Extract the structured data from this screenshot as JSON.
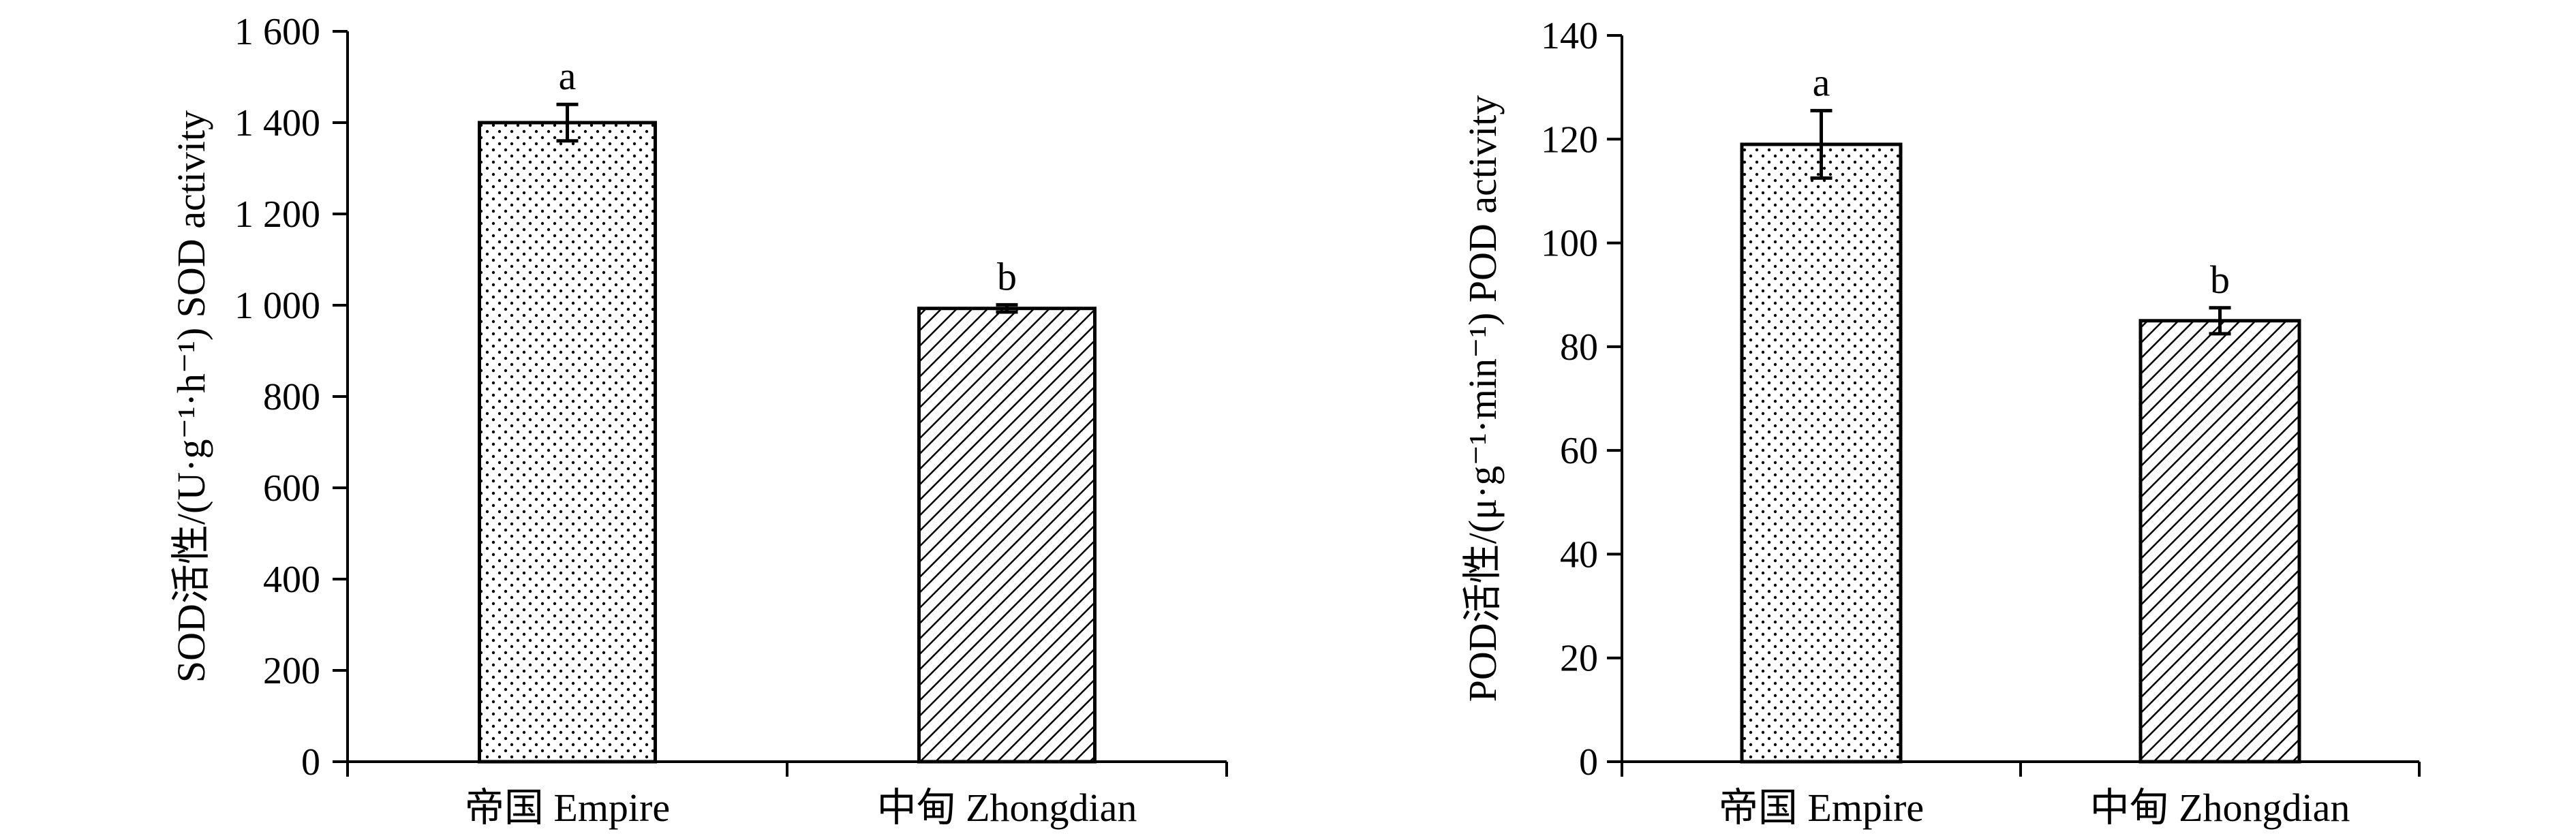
{
  "chart_data": [
    {
      "type": "bar",
      "categories": [
        "帝国 Empire",
        "中甸 Zhongdian"
      ],
      "values": [
        1400,
        993
      ],
      "errors": [
        40,
        8
      ],
      "significance": [
        "a",
        "b"
      ],
      "patterns": [
        "dots",
        "diagonal-hatch"
      ],
      "ylabel": "SOD活性/(U·g⁻¹·h⁻¹) SOD activity",
      "ylim": [
        0,
        1600
      ],
      "yticks": [
        0,
        200,
        400,
        600,
        800,
        1000,
        1200,
        1400,
        1600
      ],
      "ytick_labels": [
        "0",
        "200",
        "400",
        "600",
        "800",
        "1 000",
        "1 200",
        "1 400",
        "1 600"
      ],
      "grid": false,
      "legend": "none"
    },
    {
      "type": "bar",
      "categories": [
        "帝国 Empire",
        "中甸 Zhongdian"
      ],
      "values": [
        119,
        85
      ],
      "errors": [
        6.5,
        2.5
      ],
      "significance": [
        "a",
        "b"
      ],
      "patterns": [
        "dots",
        "diagonal-hatch"
      ],
      "ylabel": "POD活性/(μ·g⁻¹·min⁻¹) POD activity",
      "ylim": [
        0,
        140
      ],
      "yticks": [
        0,
        20,
        40,
        60,
        80,
        100,
        120,
        140
      ],
      "ytick_labels": [
        "0",
        "20",
        "40",
        "60",
        "80",
        "100",
        "120",
        "140"
      ],
      "grid": false,
      "legend": "none"
    }
  ]
}
